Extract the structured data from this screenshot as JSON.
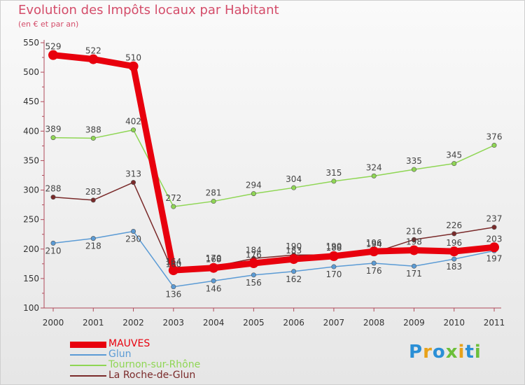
{
  "header": {
    "title": "Evolution des Impôts locaux par Habitant",
    "subtitle": "(en € et par an)"
  },
  "logo": {
    "letters": [
      "P",
      "r",
      "o",
      "x",
      "i",
      "t",
      "i"
    ]
  },
  "chart_data": {
    "type": "line",
    "title": "Evolution des Impôts locaux par Habitant",
    "subtitle": "(en € et par an)",
    "xlabel": "",
    "ylabel": "",
    "ylim": [
      100,
      550
    ],
    "yticks": [
      100,
      150,
      200,
      250,
      300,
      350,
      400,
      450,
      500,
      550
    ],
    "x": [
      "2000",
      "2001",
      "2002",
      "2003",
      "2004",
      "2005",
      "2006",
      "2007",
      "2008",
      "2009",
      "2010",
      "2011"
    ],
    "grid": false,
    "legend_position": "bottom-left",
    "series": [
      {
        "name": "MAUVES",
        "color": "#e8000d",
        "labels_above": true,
        "values": [
          529,
          522,
          510,
          164,
          168,
          176,
          183,
          188,
          196,
          198,
          196,
          203
        ]
      },
      {
        "name": "Glun",
        "color": "#5b9bd5",
        "labels_above": false,
        "values": [
          210,
          218,
          230,
          136,
          146,
          156,
          162,
          170,
          176,
          171,
          183,
          197
        ]
      },
      {
        "name": "Tournon-sur-Rhône",
        "color": "#8fd654",
        "labels_above": true,
        "values": [
          389,
          388,
          402,
          272,
          281,
          294,
          304,
          315,
          324,
          335,
          345,
          376
        ]
      },
      {
        "name": "La Roche-de-Glun",
        "color": "#7a2a2a",
        "labels_above": true,
        "values": [
          288,
          283,
          313,
          160,
          170,
          184,
          190,
          190,
          194,
          216,
          226,
          237
        ]
      }
    ]
  }
}
